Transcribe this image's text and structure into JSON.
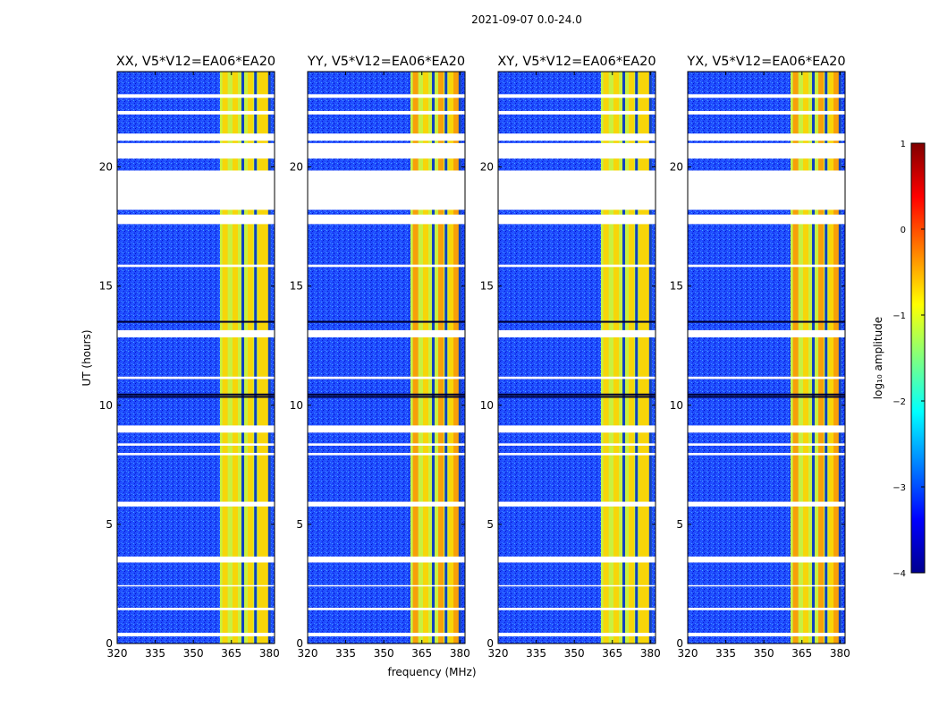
{
  "chart_data": {
    "type": "heatmap",
    "suptitle": "2021-09-07 0.0-24.0",
    "xlabel": "frequency (MHz)",
    "ylabel": "UT (hours)",
    "xlim": [
      320,
      382
    ],
    "ylim": [
      0,
      24
    ],
    "xticks": [
      320,
      335,
      350,
      365,
      380
    ],
    "yticks": [
      0,
      5,
      10,
      15,
      20
    ],
    "panels": [
      {
        "title": "XX, V5*V12=EA06*EA20",
        "polarization": "XX"
      },
      {
        "title": "YY, V5*V12=EA06*EA20",
        "polarization": "YY"
      },
      {
        "title": "XY, V5*V12=EA06*EA20",
        "polarization": "XY"
      },
      {
        "title": "YX, V5*V12=EA06*EA20",
        "polarization": "YX"
      }
    ],
    "colorbar": {
      "label": "log₁₀ amplitude",
      "range": [
        -4,
        1
      ],
      "ticks": [
        1,
        0,
        -1,
        -2,
        -3,
        -4
      ],
      "tick_labels": [
        "1",
        "0",
        "−1",
        "−2",
        "−3",
        "−4"
      ],
      "colormap": "jet"
    },
    "rfi_band_mhz": [
      360.5,
      380.5
    ],
    "rfi_bright_channels_mhz": [
      362.5,
      366.5,
      372.5,
      376.5,
      378.5
    ],
    "rfi_dark_channels_mhz": [
      369.5,
      374.5,
      380
    ],
    "flagged_ut_intervals": [
      [
        0.3,
        0.45
      ],
      [
        1.4,
        1.5
      ],
      [
        2.4,
        2.45
      ],
      [
        3.4,
        3.65
      ],
      [
        5.75,
        5.95
      ],
      [
        7.9,
        8.0
      ],
      [
        8.3,
        8.4
      ],
      [
        8.85,
        9.15
      ],
      [
        11.1,
        11.2
      ],
      [
        12.85,
        13.15
      ],
      [
        15.8,
        15.9
      ],
      [
        17.6,
        18.0
      ],
      [
        18.2,
        19.85
      ],
      [
        20.35,
        21.0
      ],
      [
        21.1,
        21.4
      ],
      [
        22.2,
        22.35
      ],
      [
        22.9,
        23.05
      ]
    ],
    "dark_ut_lines": [
      10.35,
      10.45,
      13.5
    ],
    "values_note": "background amplitude ~ -3 (blue); RFI channels -1 to 0 (green-yellow-red)"
  }
}
